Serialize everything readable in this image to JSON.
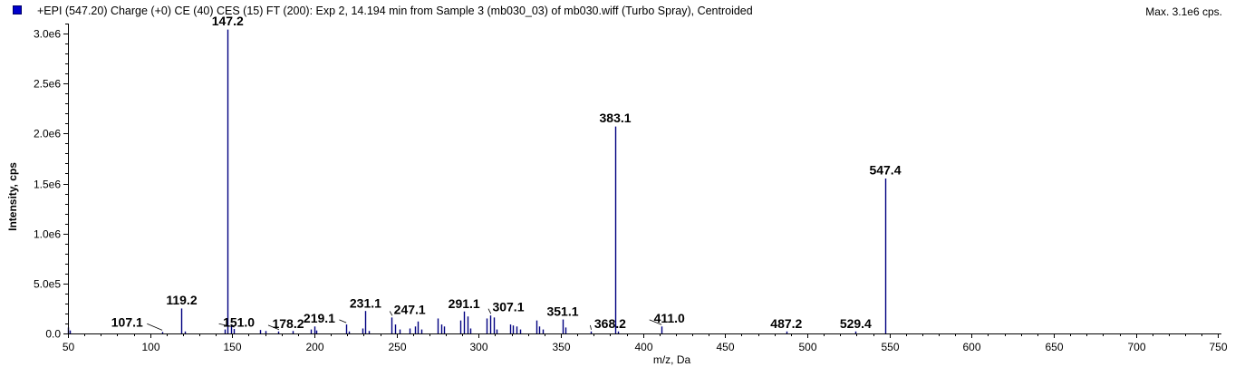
{
  "header": {
    "title": "+EPI (547.20) Charge (+0) CE (40) CES (15) FT (200): Exp 2, 14.194 min from Sample 3 (mb030_03) of mb030.wiff (Turbo Spray), Centroided",
    "max_label": "Max. 3.1e6 cps."
  },
  "colors": {
    "peak": "#000080",
    "swatch": "#0000cc",
    "axis": "#000000"
  },
  "chart_data": {
    "type": "bar",
    "xlabel": "m/z, Da",
    "ylabel": "Intensity, cps",
    "xlim": [
      50,
      752
    ],
    "ylim": [
      0,
      3100000
    ],
    "x_ticks": [
      50,
      100,
      150,
      200,
      250,
      300,
      350,
      400,
      450,
      500,
      550,
      600,
      650,
      700,
      750
    ],
    "y_ticks": [
      {
        "value": 0,
        "label": "0.0"
      },
      {
        "value": 500000,
        "label": "5.0e5"
      },
      {
        "value": 1000000,
        "label": "1.0e6"
      },
      {
        "value": 1500000,
        "label": "1.5e6"
      },
      {
        "value": 2000000,
        "label": "2.0e6"
      },
      {
        "value": 2500000,
        "label": "2.5e6"
      },
      {
        "value": 3000000,
        "label": "3.0e6"
      }
    ],
    "peaks": [
      {
        "mz": 50.2,
        "intensity": 60000
      },
      {
        "mz": 51.0,
        "intensity": 30000
      },
      {
        "mz": 107.1,
        "intensity": 15000
      },
      {
        "mz": 119.2,
        "intensity": 250000
      },
      {
        "mz": 121.0,
        "intensity": 20000
      },
      {
        "mz": 145.5,
        "intensity": 40000
      },
      {
        "mz": 147.2,
        "intensity": 3040000
      },
      {
        "mz": 149.0,
        "intensity": 90000
      },
      {
        "mz": 151.0,
        "intensity": 45000
      },
      {
        "mz": 167.0,
        "intensity": 35000
      },
      {
        "mz": 170.0,
        "intensity": 25000
      },
      {
        "mz": 178.2,
        "intensity": 20000
      },
      {
        "mz": 187.0,
        "intensity": 25000
      },
      {
        "mz": 198.0,
        "intensity": 40000
      },
      {
        "mz": 200.0,
        "intensity": 70000
      },
      {
        "mz": 201.0,
        "intensity": 30000
      },
      {
        "mz": 219.1,
        "intensity": 90000
      },
      {
        "mz": 221.0,
        "intensity": 20000
      },
      {
        "mz": 229.0,
        "intensity": 50000
      },
      {
        "mz": 231.1,
        "intensity": 225000
      },
      {
        "mz": 233.0,
        "intensity": 25000
      },
      {
        "mz": 247.1,
        "intensity": 160000
      },
      {
        "mz": 249.0,
        "intensity": 90000
      },
      {
        "mz": 252.0,
        "intensity": 40000
      },
      {
        "mz": 258.0,
        "intensity": 50000
      },
      {
        "mz": 261.0,
        "intensity": 70000
      },
      {
        "mz": 263.0,
        "intensity": 120000
      },
      {
        "mz": 265.0,
        "intensity": 40000
      },
      {
        "mz": 275.0,
        "intensity": 150000
      },
      {
        "mz": 277.0,
        "intensity": 90000
      },
      {
        "mz": 279.0,
        "intensity": 70000
      },
      {
        "mz": 289.0,
        "intensity": 130000
      },
      {
        "mz": 291.1,
        "intensity": 220000
      },
      {
        "mz": 293.0,
        "intensity": 170000
      },
      {
        "mz": 295.0,
        "intensity": 50000
      },
      {
        "mz": 305.0,
        "intensity": 150000
      },
      {
        "mz": 307.1,
        "intensity": 180000
      },
      {
        "mz": 309.0,
        "intensity": 160000
      },
      {
        "mz": 311.0,
        "intensity": 40000
      },
      {
        "mz": 319.0,
        "intensity": 90000
      },
      {
        "mz": 321.0,
        "intensity": 80000
      },
      {
        "mz": 323.0,
        "intensity": 70000
      },
      {
        "mz": 325.0,
        "intensity": 40000
      },
      {
        "mz": 335.0,
        "intensity": 130000
      },
      {
        "mz": 337.0,
        "intensity": 70000
      },
      {
        "mz": 339.0,
        "intensity": 40000
      },
      {
        "mz": 351.1,
        "intensity": 140000
      },
      {
        "mz": 353.0,
        "intensity": 60000
      },
      {
        "mz": 368.2,
        "intensity": 20000
      },
      {
        "mz": 383.1,
        "intensity": 2070000
      },
      {
        "mz": 385.0,
        "intensity": 20000
      },
      {
        "mz": 411.0,
        "intensity": 70000
      },
      {
        "mz": 487.2,
        "intensity": 20000
      },
      {
        "mz": 529.4,
        "intensity": 20000
      },
      {
        "mz": 547.4,
        "intensity": 1550000
      }
    ],
    "annotations": [
      {
        "label": "107.1",
        "mz": 107.1,
        "intensity": 15000,
        "text_mz": 86.0,
        "text_int": 70000
      },
      {
        "label": "119.2",
        "mz": 119.2,
        "intensity": 250000,
        "text_mz": 119.2,
        "text_int": 290000
      },
      {
        "label": "147.2",
        "mz": 147.2,
        "intensity": 3040000,
        "text_mz": 147.2,
        "text_int": 3080000
      },
      {
        "label": "151.0",
        "mz": 151.0,
        "intensity": 45000,
        "text_mz": 154.0,
        "text_int": 70000
      },
      {
        "label": "178.2",
        "mz": 178.2,
        "intensity": 20000,
        "text_mz": 184.0,
        "text_int": 55000
      },
      {
        "label": "219.1",
        "mz": 219.1,
        "intensity": 90000,
        "text_mz": 203.0,
        "text_int": 110000
      },
      {
        "label": "231.1",
        "mz": 231.1,
        "intensity": 225000,
        "text_mz": 231.1,
        "text_int": 260000
      },
      {
        "label": "247.1",
        "mz": 247.1,
        "intensity": 160000,
        "text_mz": 258.0,
        "text_int": 195000
      },
      {
        "label": "291.1",
        "mz": 291.1,
        "intensity": 220000,
        "text_mz": 291.1,
        "text_int": 255000
      },
      {
        "label": "307.1",
        "mz": 307.1,
        "intensity": 180000,
        "text_mz": 318.0,
        "text_int": 220000
      },
      {
        "label": "351.1",
        "mz": 351.1,
        "intensity": 140000,
        "text_mz": 351.1,
        "text_int": 175000
      },
      {
        "label": "368.2",
        "mz": 368.2,
        "intensity": 20000,
        "text_mz": 380.0,
        "text_int": 55000
      },
      {
        "label": "383.1",
        "mz": 383.1,
        "intensity": 2070000,
        "text_mz": 383.1,
        "text_int": 2110000
      },
      {
        "label": "411.0",
        "mz": 411.0,
        "intensity": 70000,
        "text_mz": 416.0,
        "text_int": 110000
      },
      {
        "label": "487.2",
        "mz": 487.2,
        "intensity": 20000,
        "text_mz": 487.2,
        "text_int": 55000
      },
      {
        "label": "529.4",
        "mz": 529.4,
        "intensity": 20000,
        "text_mz": 529.4,
        "text_int": 55000
      },
      {
        "label": "547.4",
        "mz": 547.4,
        "intensity": 1550000,
        "text_mz": 547.4,
        "text_int": 1590000
      }
    ]
  }
}
